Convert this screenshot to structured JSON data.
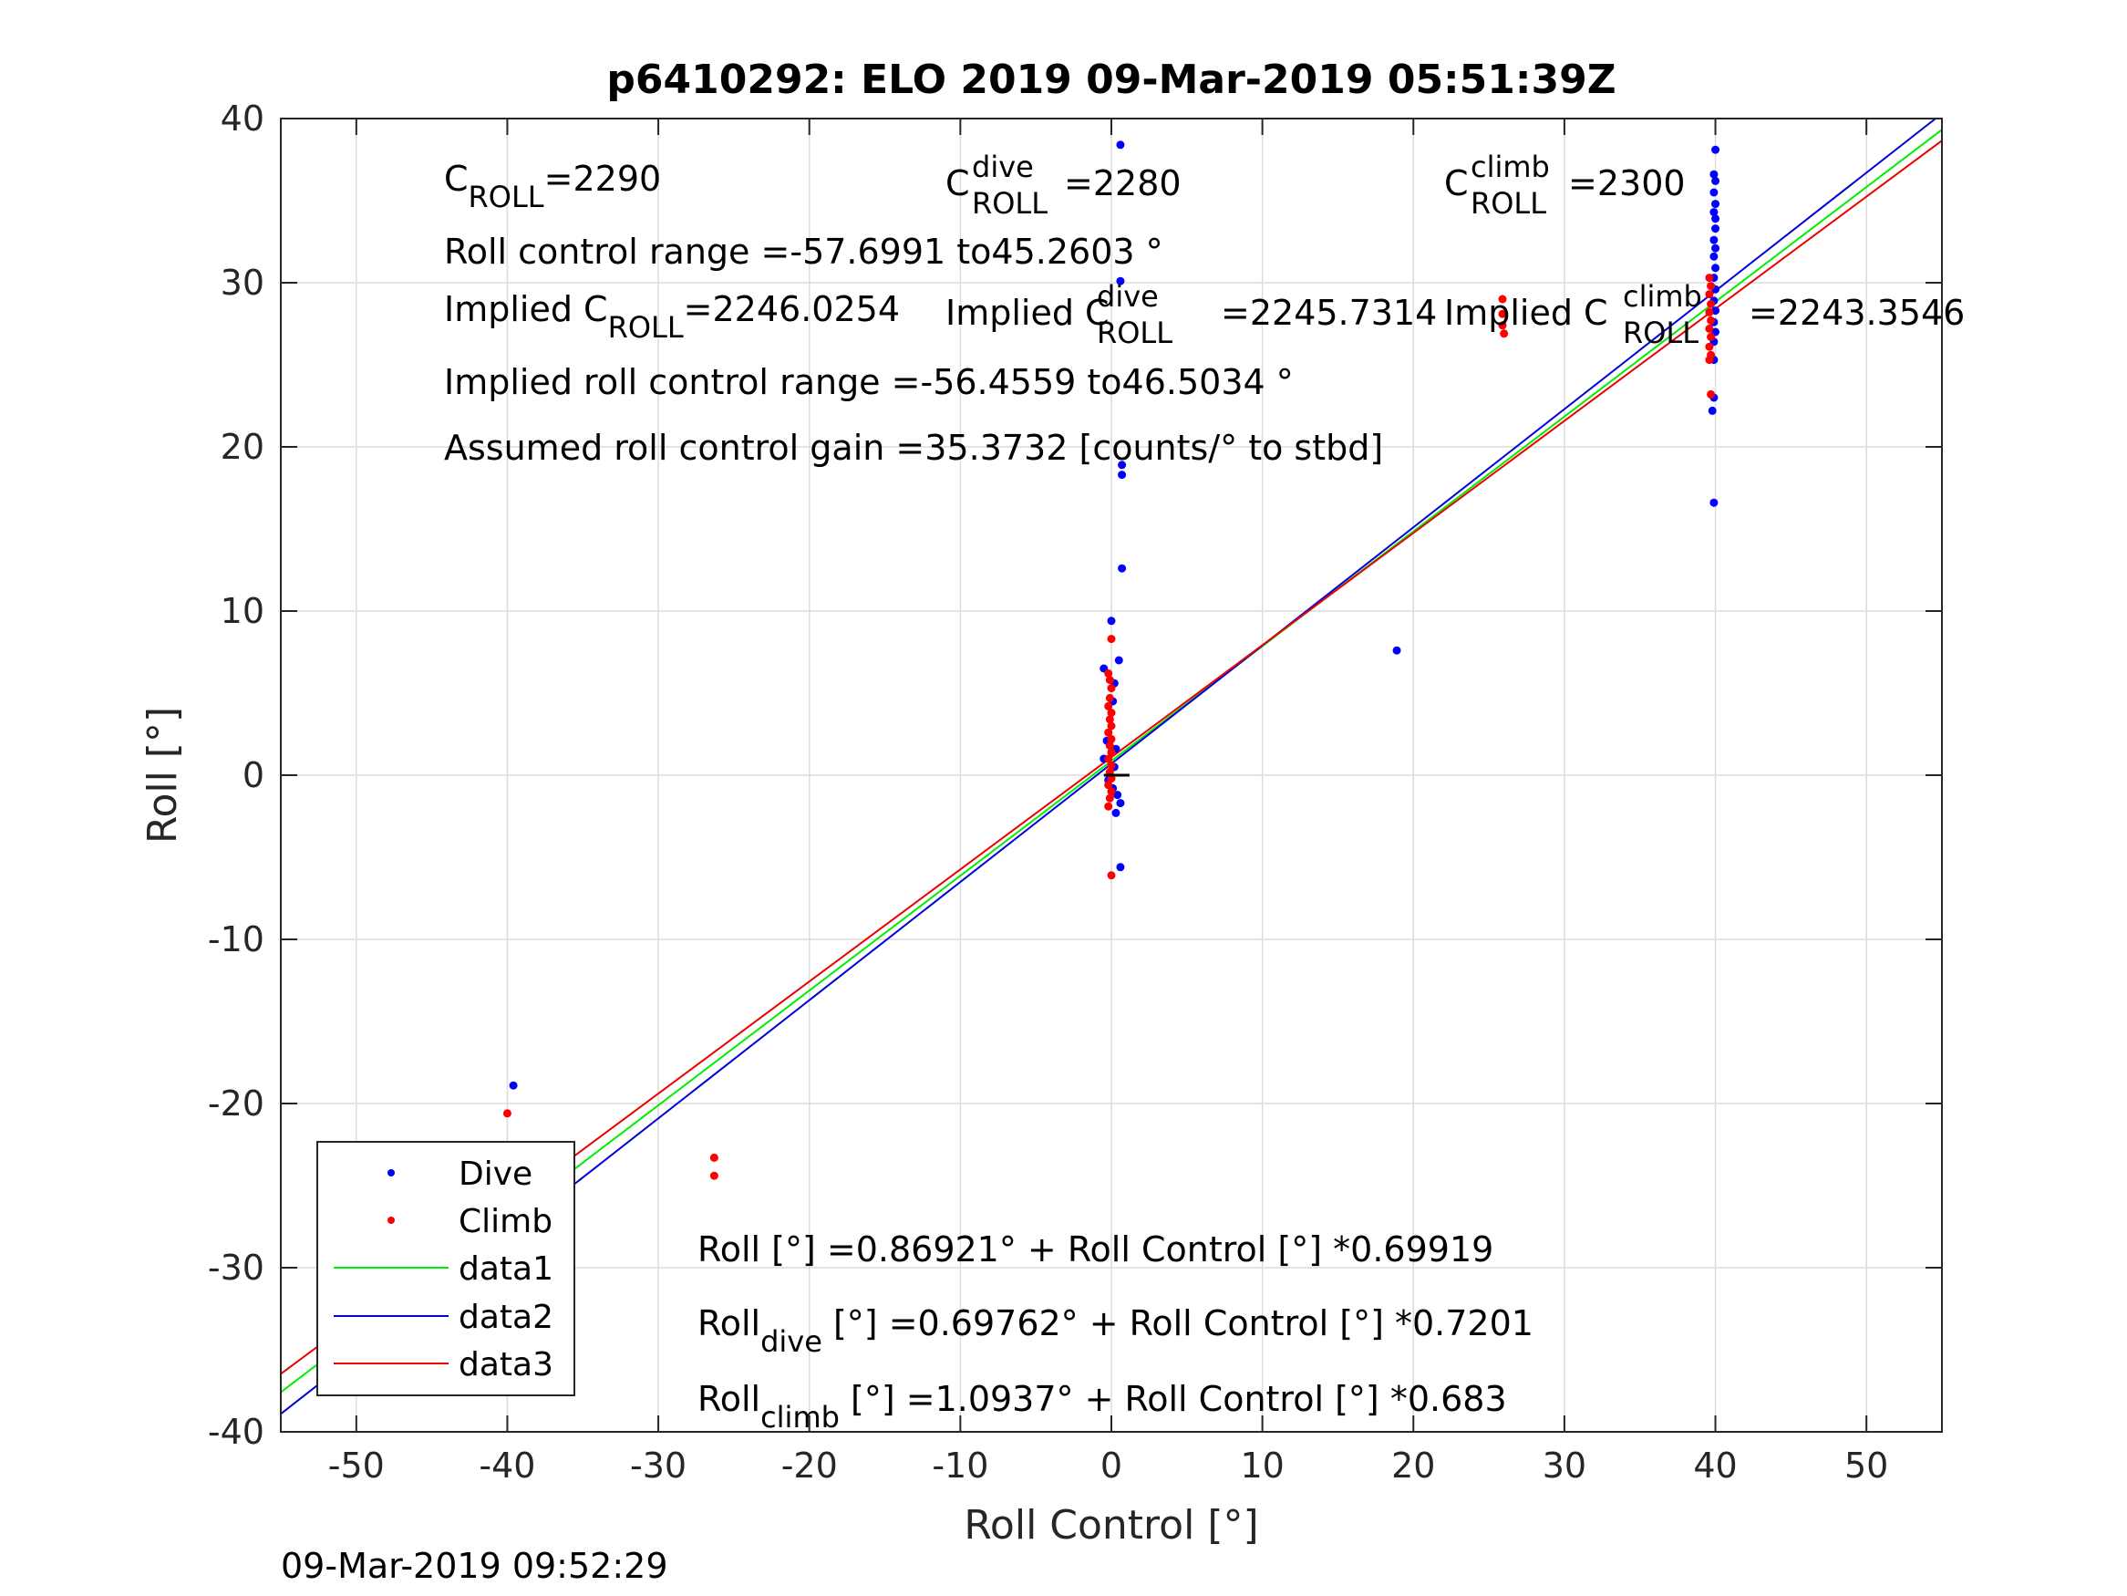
{
  "chart_data": {
    "type": "scatter",
    "title": "p6410292: ELO 2019 09-Mar-2019 05:51:39Z",
    "xlabel": "Roll Control [°]",
    "ylabel": "Roll [°]",
    "xlim": [
      -55,
      55
    ],
    "ylim": [
      -40,
      40
    ],
    "xticks": [
      -50,
      -40,
      -30,
      -20,
      -10,
      0,
      10,
      20,
      30,
      40,
      50
    ],
    "yticks": [
      -40,
      -30,
      -20,
      -10,
      0,
      10,
      20,
      30,
      40
    ],
    "grid": true,
    "legend_position": "bottom-left",
    "timestamp": "09-Mar-2019 09:52:29",
    "annotations": {
      "c_roll_label": "C",
      "c_roll_sub": "ROLL",
      "c_roll_value": "=2290",
      "c_dive_label": "C",
      "c_dive_sup": "dive",
      "c_dive_sub": "ROLL",
      "c_dive_value": "=2280",
      "c_climb_label": "C",
      "c_climb_sup": "climb",
      "c_climb_sub": "ROLL",
      "c_climb_value": "=2300",
      "roll_range": "Roll control range =-57.6991 to45.2603 °",
      "implied_label": "Implied C",
      "implied_sub": "ROLL",
      "implied_value": "=2246.0254",
      "implied_dive_label": "Implied C",
      "implied_dive_sup": "dive",
      "implied_dive_sub": "ROLL",
      "implied_dive_value": "=2245.7314",
      "implied_climb_label": "Implied C",
      "implied_climb_sup": "climb",
      "implied_climb_sub": "ROLL",
      "implied_climb_value": "=2243.3546",
      "implied_range": "Implied roll control range =-56.4559 to46.5034 °",
      "gain": "Assumed roll control gain =35.3732 [counts/° to stbd]",
      "fit_all": "Roll [°] =0.86921° + Roll Control [°] *0.69919",
      "fit_dive_pre": "Roll",
      "fit_dive_sub": "dive",
      "fit_dive_post": " [°] =0.69762° + Roll Control [°] *0.7201",
      "fit_climb_pre": "Roll",
      "fit_climb_sub": "climb",
      "fit_climb_post": " [°] =1.0937° + Roll Control [°] *0.683"
    },
    "colors": {
      "dive": "#0000ff",
      "climb": "#ff0000",
      "data1": "#00ee00",
      "data2": "#0000dd",
      "data3": "#ee0000"
    },
    "series": [
      {
        "name": "Dive",
        "type": "scatter",
        "color": "#0000ff",
        "points": [
          [
            0.6,
            38.4
          ],
          [
            0.6,
            30.1
          ],
          [
            0.7,
            18.9
          ],
          [
            0.7,
            18.3
          ],
          [
            0.7,
            12.6
          ],
          [
            0.0,
            9.4
          ],
          [
            0.5,
            7.0
          ],
          [
            -0.5,
            6.5
          ],
          [
            0.2,
            5.6
          ],
          [
            0.1,
            4.5
          ],
          [
            -0.3,
            2.1
          ],
          [
            0.3,
            1.6
          ],
          [
            -0.5,
            1.0
          ],
          [
            0.2,
            0.5
          ],
          [
            -0.2,
            -0.3
          ],
          [
            0.1,
            -0.8
          ],
          [
            0.4,
            -1.2
          ],
          [
            0.6,
            -1.7
          ],
          [
            0.3,
            -2.3
          ],
          [
            0.6,
            -5.6
          ],
          [
            18.9,
            7.6
          ],
          [
            -39.6,
            -18.9
          ],
          [
            -39.0,
            -25.2
          ],
          [
            -39.4,
            -25.6
          ],
          [
            -39.7,
            -26.5
          ],
          [
            -39.5,
            -27.0
          ],
          [
            -39.9,
            -27.6
          ],
          [
            -39.3,
            -28.1
          ],
          [
            -39.8,
            -28.6
          ],
          [
            40.0,
            38.1
          ],
          [
            39.9,
            36.6
          ],
          [
            40.0,
            36.2
          ],
          [
            39.9,
            35.5
          ],
          [
            40.0,
            34.8
          ],
          [
            39.9,
            34.3
          ],
          [
            40.0,
            33.9
          ],
          [
            40.0,
            33.3
          ],
          [
            39.9,
            32.6
          ],
          [
            40.0,
            32.1
          ],
          [
            39.9,
            31.6
          ],
          [
            40.0,
            30.9
          ],
          [
            39.9,
            30.3
          ],
          [
            40.0,
            29.6
          ],
          [
            39.9,
            28.9
          ],
          [
            40.0,
            28.3
          ],
          [
            39.9,
            27.6
          ],
          [
            40.0,
            27.0
          ],
          [
            39.9,
            26.4
          ],
          [
            39.9,
            25.3
          ],
          [
            39.9,
            23.0
          ],
          [
            39.8,
            22.2
          ],
          [
            39.9,
            16.6
          ]
        ]
      },
      {
        "name": "Climb",
        "type": "scatter",
        "color": "#ff0000",
        "points": [
          [
            0.0,
            8.3
          ],
          [
            -0.2,
            6.2
          ],
          [
            -0.1,
            5.8
          ],
          [
            0.0,
            5.3
          ],
          [
            -0.1,
            4.7
          ],
          [
            -0.2,
            4.2
          ],
          [
            0.0,
            3.8
          ],
          [
            -0.1,
            3.4
          ],
          [
            0.0,
            3.0
          ],
          [
            -0.2,
            2.6
          ],
          [
            0.0,
            2.2
          ],
          [
            -0.1,
            1.8
          ],
          [
            0.0,
            1.4
          ],
          [
            -0.2,
            1.0
          ],
          [
            0.0,
            0.6
          ],
          [
            -0.1,
            0.2
          ],
          [
            0.0,
            -0.2
          ],
          [
            -0.2,
            -0.6
          ],
          [
            0.0,
            -1.0
          ],
          [
            -0.1,
            -1.4
          ],
          [
            -0.2,
            -1.9
          ],
          [
            0.0,
            -6.1
          ],
          [
            -40.0,
            -20.6
          ],
          [
            -26.3,
            -23.3
          ],
          [
            -26.3,
            -24.4
          ],
          [
            -40.0,
            -24.9
          ],
          [
            -39.9,
            -25.5
          ],
          [
            -40.1,
            -26.0
          ],
          [
            -39.9,
            -26.5
          ],
          [
            -40.0,
            -27.0
          ],
          [
            -39.9,
            -27.5
          ],
          [
            25.9,
            29.0
          ],
          [
            25.9,
            28.1
          ],
          [
            25.9,
            27.4
          ],
          [
            26.0,
            26.9
          ],
          [
            39.6,
            30.3
          ],
          [
            39.7,
            29.8
          ],
          [
            39.6,
            29.3
          ],
          [
            39.7,
            28.7
          ],
          [
            39.6,
            28.2
          ],
          [
            39.7,
            27.7
          ],
          [
            39.6,
            27.2
          ],
          [
            39.7,
            26.7
          ],
          [
            39.6,
            26.1
          ],
          [
            39.7,
            25.6
          ],
          [
            39.6,
            25.3
          ],
          [
            39.7,
            23.2
          ]
        ]
      },
      {
        "name": "data1",
        "type": "line",
        "color": "#00ee00",
        "intercept": 0.86921,
        "slope": 0.69919
      },
      {
        "name": "data2",
        "type": "line",
        "color": "#0000dd",
        "intercept": 0.69762,
        "slope": 0.7201
      },
      {
        "name": "data3",
        "type": "line",
        "color": "#ee0000",
        "intercept": 1.0937,
        "slope": 0.683
      }
    ],
    "zero_marker": {
      "x": [
        -0.5,
        1.2
      ],
      "y": 0
    }
  }
}
